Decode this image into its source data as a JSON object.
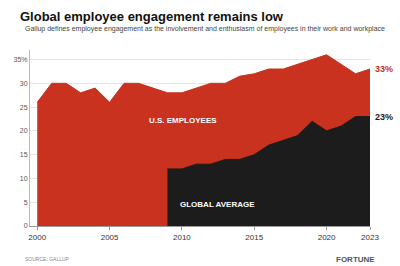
{
  "chart_data": {
    "type": "area",
    "title": "Global employee engagement remains low",
    "subtitle": "Gallup defines employee engagement as the involvement and enthusiasm of employees in their work and workplace",
    "annotations": [
      "SOURCE: GALLUP",
      "FORTUNE"
    ],
    "x": [
      2000,
      2001,
      2002,
      2003,
      2004,
      2005,
      2006,
      2007,
      2008,
      2009,
      2010,
      2011,
      2012,
      2013,
      2014,
      2015,
      2016,
      2017,
      2018,
      2019,
      2020,
      2021,
      2022,
      2023
    ],
    "series": [
      {
        "name": "U.S. EMPLOYEES",
        "color": "#c8321f",
        "values": [
          26,
          30,
          30,
          28,
          29,
          26,
          30,
          30,
          29,
          28,
          28,
          29,
          30,
          30,
          31.5,
          32,
          33,
          33,
          34,
          35,
          36,
          34,
          32,
          33
        ],
        "value_labels": [
          null,
          null,
          null,
          null,
          null,
          null,
          null,
          null,
          null,
          null,
          null,
          null,
          null,
          null,
          null,
          null,
          null,
          null,
          null,
          null,
          null,
          null,
          null,
          "33%"
        ]
      },
      {
        "name": "GLOBAL AVERAGE",
        "color": "#1c1c1c",
        "values": [
          null,
          null,
          null,
          null,
          null,
          null,
          null,
          null,
          null,
          12,
          12,
          13,
          13,
          14,
          14,
          15,
          17,
          18,
          19,
          22,
          20,
          21,
          23,
          23
        ],
        "value_labels": [
          null,
          null,
          null,
          null,
          null,
          null,
          null,
          null,
          null,
          null,
          null,
          null,
          null,
          null,
          null,
          null,
          null,
          null,
          null,
          null,
          null,
          null,
          null,
          "23%"
        ]
      }
    ],
    "xlim": [
      1999.5,
      2023
    ],
    "xticks": [
      2000,
      2005,
      2010,
      2015,
      2020,
      2023
    ],
    "ylim": [
      0,
      37
    ],
    "yticks": [
      0,
      5,
      10,
      15,
      20,
      25,
      30,
      {
        "value": 35,
        "label": "35%"
      }
    ],
    "grid": true
  }
}
